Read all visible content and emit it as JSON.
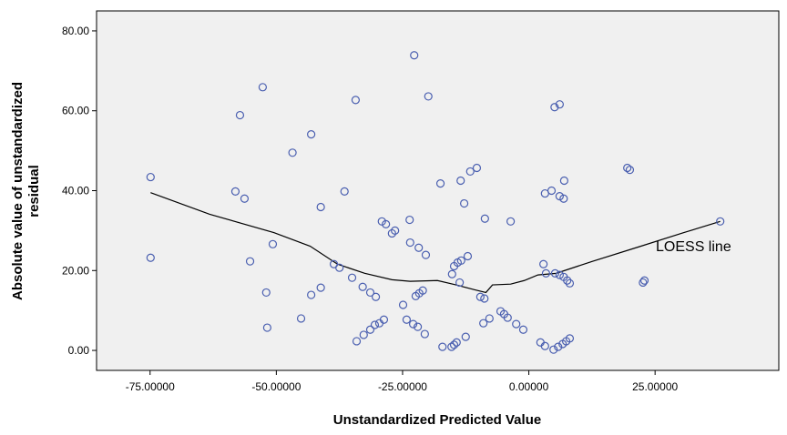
{
  "chart_data": {
    "type": "scatter",
    "x_label": "Unstandardized Predicted Value",
    "y_label": [
      "Absolute value of unstandardized",
      "residual"
    ],
    "annotation": "LOESS line",
    "xlim": [
      -85.6,
      49.5
    ],
    "ylim": [
      -5,
      85
    ],
    "xticks": [
      {
        "value": -75,
        "label": "-75.00000"
      },
      {
        "value": -50,
        "label": "-50.00000"
      },
      {
        "value": -25,
        "label": "-25.00000"
      },
      {
        "value": 0,
        "label": "0.00000"
      },
      {
        "value": 25,
        "label": "25.00000"
      }
    ],
    "yticks": [
      {
        "value": 0,
        "label": "0.00"
      },
      {
        "value": 20,
        "label": "20.00"
      },
      {
        "value": 40,
        "label": "40.00"
      },
      {
        "value": 60,
        "label": "60.00"
      },
      {
        "value": 80,
        "label": "80.00"
      }
    ],
    "color": "#4a5fb0",
    "x": [
      -74.9,
      -74.9,
      -52.7,
      -57.2,
      -58.1,
      -56.3,
      -55.2,
      -52.0,
      -51.8,
      -50.7,
      -46.8,
      -43.1,
      -45.1,
      -43.1,
      -41.2,
      -41.2,
      -36.5,
      -34.3,
      -38.6,
      -37.5,
      -35.0,
      -32.9,
      -31.4,
      -30.3,
      -29.1,
      -28.3,
      -27.1,
      -26.5,
      -34.1,
      -32.7,
      -31.4,
      -30.5,
      -29.6,
      -28.7,
      -22.7,
      -19.9,
      -23.6,
      -23.5,
      -21.8,
      -20.4,
      -22.4,
      -21.7,
      -21.0,
      -24.9,
      -24.2,
      -22.9,
      -22.0,
      -20.6,
      -17.5,
      -17.1,
      -15.3,
      -14.8,
      -14.3,
      -12.5,
      -15.2,
      -14.8,
      -14.1,
      -13.4,
      -13.7,
      -12.1,
      -13.5,
      -11.6,
      -10.3,
      -12.8,
      -9.6,
      -8.8,
      -8.7,
      -9.0,
      -7.8,
      -5.6,
      -4.9,
      -4.2,
      -3.6,
      -2.5,
      -1.1,
      2.3,
      3.2,
      4.9,
      5.8,
      6.7,
      7.4,
      8.1,
      2.9,
      3.4,
      5.2,
      6.1,
      6.9,
      7.6,
      8.1,
      5.1,
      6.1,
      3.2,
      4.5,
      6.1,
      6.9,
      7.0,
      19.5,
      20.0,
      22.6,
      22.9,
      37.9
    ],
    "values": [
      43.4,
      23.2,
      65.9,
      58.9,
      39.8,
      38.0,
      22.3,
      14.5,
      5.7,
      26.6,
      49.5,
      54.1,
      8.0,
      13.9,
      15.7,
      35.9,
      39.8,
      62.7,
      21.6,
      20.7,
      18.2,
      15.9,
      14.5,
      13.4,
      32.3,
      31.6,
      29.3,
      30.0,
      2.3,
      3.9,
      5.2,
      6.4,
      6.8,
      7.7,
      73.9,
      63.6,
      32.7,
      27.0,
      25.7,
      23.9,
      13.6,
      14.3,
      15.0,
      11.4,
      7.7,
      6.6,
      5.9,
      4.1,
      41.8,
      0.9,
      0.9,
      1.4,
      2.0,
      3.4,
      19.1,
      21.1,
      22.0,
      22.5,
      17.0,
      23.6,
      42.5,
      44.8,
      45.7,
      36.8,
      13.4,
      13.0,
      33.0,
      6.8,
      8.0,
      9.8,
      9.1,
      8.2,
      32.3,
      6.6,
      5.2,
      2.0,
      1.1,
      0.2,
      0.9,
      1.6,
      2.3,
      3.0,
      21.6,
      19.3,
      19.3,
      18.9,
      18.4,
      17.5,
      16.8,
      60.9,
      61.6,
      39.3,
      40.0,
      38.6,
      38.0,
      42.5,
      45.7,
      45.2,
      17.0,
      17.5,
      32.3
    ],
    "loess": {
      "color": "#000000",
      "x": [
        -74.9,
        -63.2,
        -50.5,
        -43.3,
        -37.9,
        -32.5,
        -27.1,
        -23.5,
        -18.1,
        -14.4,
        -10.8,
        -8.5,
        -7.2,
        -3.6,
        -0.9,
        1.8,
        5.4,
        12.6,
        21.7,
        30.7,
        37.9
      ],
      "values": [
        39.5,
        34.1,
        29.5,
        26.1,
        21.6,
        19.3,
        17.7,
        17.3,
        17.5,
        16.4,
        15.2,
        14.5,
        16.4,
        16.6,
        17.5,
        18.9,
        19.3,
        22.3,
        25.9,
        29.5,
        32.3
      ]
    }
  }
}
